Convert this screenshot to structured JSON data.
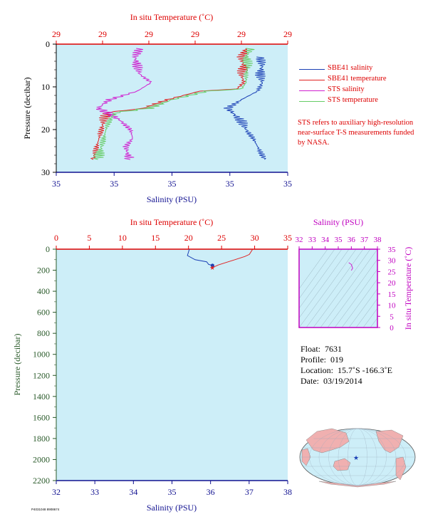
{
  "top_panel": {
    "top_axis_title": "In situ Temperature (˚C)",
    "top_tick_labels": [
      "29",
      "29",
      "29",
      "29",
      "29",
      "29"
    ],
    "bottom_axis_title": "Salinity (PSU)",
    "bottom_tick_labels": [
      "35",
      "35",
      "35",
      "35",
      "35"
    ],
    "left_axis_title": "Pressure (decibar)",
    "left_tick_labels": [
      "0",
      "10",
      "20",
      "30"
    ]
  },
  "legend": {
    "items": [
      {
        "label": "SBE41 salinity",
        "color": "#1a3fb5"
      },
      {
        "label": "SBE41 temperature",
        "color": "#e02020"
      },
      {
        "label": "STS salinity",
        "color": "#d020d0"
      },
      {
        "label": "STS temperature",
        "color": "#66cc66"
      }
    ]
  },
  "note": "STS refers to auxiliary high-resolution near-surface T-S measurements funded by NASA.",
  "main_panel": {
    "top_axis_title": "In situ Temperature (˚C)",
    "top_tick_labels": [
      "0",
      "5",
      "10",
      "15",
      "20",
      "25",
      "30",
      "35"
    ],
    "bottom_axis_title": "Salinity (PSU)",
    "bottom_tick_labels": [
      "32",
      "33",
      "34",
      "35",
      "36",
      "37",
      "38"
    ],
    "left_axis_title": "Pressure (decibar)",
    "left_tick_labels": [
      "0",
      "200",
      "400",
      "600",
      "800",
      "1000",
      "1200",
      "1400",
      "1600",
      "1800",
      "2000",
      "2200"
    ]
  },
  "ts_panel": {
    "top_axis_title": "Salinity (PSU)",
    "top_tick_labels": [
      "32",
      "33",
      "34",
      "35",
      "36",
      "37",
      "38"
    ],
    "right_axis_title": "In situ Temperature (˚C)",
    "right_tick_labels": [
      "0",
      "5",
      "10",
      "15",
      "20",
      "25",
      "30",
      "35"
    ]
  },
  "float_info": {
    "float_label": "Float:",
    "float_value": "7631",
    "profile_label": "Profile:",
    "profile_value": "019",
    "location_label": "Location:",
    "location_value": "15.7˚S  -166.3˚E",
    "date_label": "Date:",
    "date_value": "03/19/2014"
  },
  "colors": {
    "plot_bg": "#cdeef8",
    "axis_red": "#dd0000",
    "axis_navy": "#101090",
    "axis_green": "#2a5a2a",
    "axis_magenta": "#c000c0",
    "land": "#f0b0b0",
    "ocean": "#cdeef8"
  },
  "chart_data": [
    {
      "type": "line",
      "panel": "near-surface profile",
      "x_axis": "Salinity (PSU)",
      "x2_axis": "In situ Temperature (˚C)",
      "y_axis": "Pressure (decibar)",
      "ylim": [
        30,
        0
      ],
      "series": [
        {
          "name": "SBE41 salinity",
          "color": "#1a3fb5",
          "y": [
            3,
            5,
            7,
            9,
            11,
            13,
            15,
            16,
            18,
            20,
            22,
            24,
            26,
            27
          ],
          "x_frac": [
            0.88,
            0.89,
            0.88,
            0.89,
            0.87,
            0.8,
            0.74,
            0.76,
            0.8,
            0.82,
            0.85,
            0.87,
            0.89,
            0.9
          ]
        },
        {
          "name": "SBE41 temperature",
          "color": "#e02020",
          "y": [
            1,
            3,
            5,
            7,
            9,
            10.5,
            11,
            13,
            15,
            16,
            17,
            19,
            21,
            23,
            25,
            27
          ],
          "x_frac": [
            0.82,
            0.8,
            0.81,
            0.8,
            0.81,
            0.78,
            0.62,
            0.48,
            0.38,
            0.22,
            0.21,
            0.2,
            0.19,
            0.18,
            0.17,
            0.16
          ]
        },
        {
          "name": "STS salinity",
          "color": "#d020d0",
          "y": [
            1,
            3,
            5,
            7,
            9,
            11,
            13,
            15,
            16,
            18,
            20,
            22,
            24,
            26,
            27
          ],
          "x_frac": [
            0.36,
            0.34,
            0.35,
            0.36,
            0.41,
            0.35,
            0.23,
            0.18,
            0.22,
            0.28,
            0.32,
            0.33,
            0.3,
            0.31,
            0.32
          ]
        },
        {
          "name": "STS temperature",
          "color": "#66cc66",
          "y": [
            1,
            3,
            5,
            7,
            9,
            10.5,
            11,
            13,
            15,
            16,
            17,
            19,
            21,
            23,
            25,
            27
          ],
          "x_frac": [
            0.84,
            0.82,
            0.83,
            0.82,
            0.82,
            0.8,
            0.65,
            0.5,
            0.4,
            0.26,
            0.24,
            0.22,
            0.21,
            0.2,
            0.19,
            0.18
          ]
        }
      ]
    },
    {
      "type": "line",
      "panel": "full-depth profile",
      "xlim": [
        32,
        38
      ],
      "x2lim": [
        0,
        35
      ],
      "ylim": [
        2200,
        0
      ],
      "series": [
        {
          "name": "salinity",
          "color": "#1a3fb5",
          "axis": "salinity",
          "points": [
            [
              35.45,
              0
            ],
            [
              35.4,
              60
            ],
            [
              35.6,
              100
            ],
            [
              35.9,
              120
            ],
            [
              35.95,
              145
            ],
            [
              36.05,
              155
            ]
          ]
        },
        {
          "name": "temperature",
          "color": "#e02020",
          "axis": "temperature",
          "points": [
            [
              29.7,
              0
            ],
            [
              29.2,
              50
            ],
            [
              28.5,
              70
            ],
            [
              27.0,
              100
            ],
            [
              25.5,
              130
            ],
            [
              24.5,
              150
            ],
            [
              23.6,
              175
            ]
          ]
        }
      ]
    },
    {
      "type": "scatter",
      "panel": "T-S diagram",
      "xlim": [
        32,
        38
      ],
      "ylim": [
        0,
        35
      ],
      "series": [
        {
          "color": "#d020d0",
          "points": [
            [
              35.8,
              29.0
            ],
            [
              36.0,
              28.2
            ],
            [
              36.1,
              26.5
            ],
            [
              36.0,
              25.5
            ]
          ]
        }
      ]
    }
  ],
  "footer_code": "P4031048 8908674"
}
